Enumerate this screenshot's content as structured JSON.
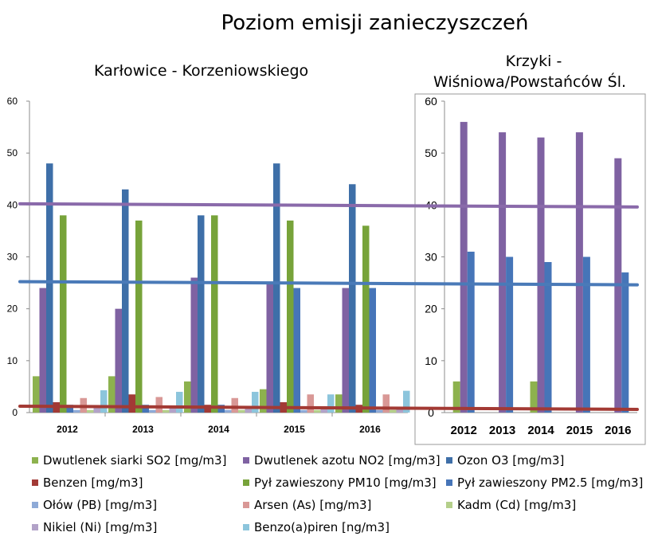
{
  "title": "Poziom emisji zanieczyszczeń",
  "chart_data": [
    {
      "type": "bar",
      "title": "Karłowice - Korzeniowskiego",
      "categories": [
        "2012",
        "2013",
        "2014",
        "2015",
        "2016"
      ],
      "ylim": [
        0,
        60
      ],
      "yticks": [
        "0",
        "10",
        "20",
        "30",
        "40",
        "50",
        "60"
      ],
      "grid": false,
      "series": [
        {
          "name": "Dwutlenek siarki SO2 [mg/m3]",
          "color": "#8db24e",
          "values": [
            7,
            7,
            6,
            4.5,
            3.5
          ]
        },
        {
          "name": "Dwutlenek azotu NO2 [mg/m3]",
          "color": "#7f62a2",
          "values": [
            24,
            20,
            26,
            25,
            24
          ]
        },
        {
          "name": "Ozon O3 [mg/m3]",
          "color": "#3e6fa8",
          "values": [
            48,
            43,
            38,
            48,
            44
          ]
        },
        {
          "name": "Benzen [mg/m3]",
          "color": "#a23a36",
          "values": [
            2,
            3.5,
            1.5,
            2,
            1.5
          ]
        },
        {
          "name": "Pył zawieszony PM10 [mg/m3]",
          "color": "#77a33a",
          "values": [
            38,
            37,
            38,
            37,
            36
          ]
        },
        {
          "name": "Pył zawieszony PM2.5 [mg/m3]",
          "color": "#4675b8",
          "values": [
            1.5,
            1.5,
            1.5,
            24,
            24
          ]
        },
        {
          "name": "Ołów (PB) [mg/m3]",
          "color": "#8eaad7",
          "values": [
            0.5,
            0.5,
            0.5,
            0.5,
            0.5
          ]
        },
        {
          "name": "Arsen (As) [mg/m3]",
          "color": "#d99896",
          "values": [
            2.8,
            3,
            2.8,
            3.5,
            3.5
          ]
        },
        {
          "name": "Kadm (Cd) [mg/m3]",
          "color": "#b4cf8a",
          "values": [
            0.5,
            0.5,
            0.5,
            0.5,
            0.5
          ]
        },
        {
          "name": "Nikiel (Ni) [mg/m3]",
          "color": "#b2a2c8",
          "values": [
            1,
            1,
            1,
            1,
            1
          ]
        },
        {
          "name": "Benzo(a)piren [ng/m3]",
          "color": "#8cc5dc",
          "values": [
            4.3,
            4,
            4,
            3.5,
            4.2
          ]
        }
      ]
    },
    {
      "type": "bar",
      "title_lines": [
        "Krzyki -",
        "Wiśniowa/Powstańców Śl."
      ],
      "categories": [
        "2012",
        "2013",
        "2014",
        "2015",
        "2016"
      ],
      "ylim": [
        0,
        60
      ],
      "yticks": [
        "0",
        "10",
        "20",
        "30",
        "40",
        "50",
        "60"
      ],
      "grid": false,
      "series": [
        {
          "name": "Dwutlenek siarki SO2 [mg/m3]",
          "color": "#8db24e",
          "values": [
            6,
            0,
            6,
            0,
            0
          ]
        },
        {
          "name": "Dwutlenek azotu NO2 [mg/m3]",
          "color": "#7f62a2",
          "values": [
            56,
            54,
            53,
            54,
            49
          ]
        },
        {
          "name": "Pył zawieszony PM2.5 [mg/m3]",
          "color": "#4675b8",
          "values": [
            31,
            30,
            29,
            30,
            27
          ]
        }
      ]
    }
  ],
  "reference_lines": [
    {
      "value": 40,
      "color": "#8a6aaa"
    },
    {
      "value": 25,
      "color": "#4a7ab8"
    },
    {
      "value": 1,
      "color": "#a33a34"
    }
  ]
}
